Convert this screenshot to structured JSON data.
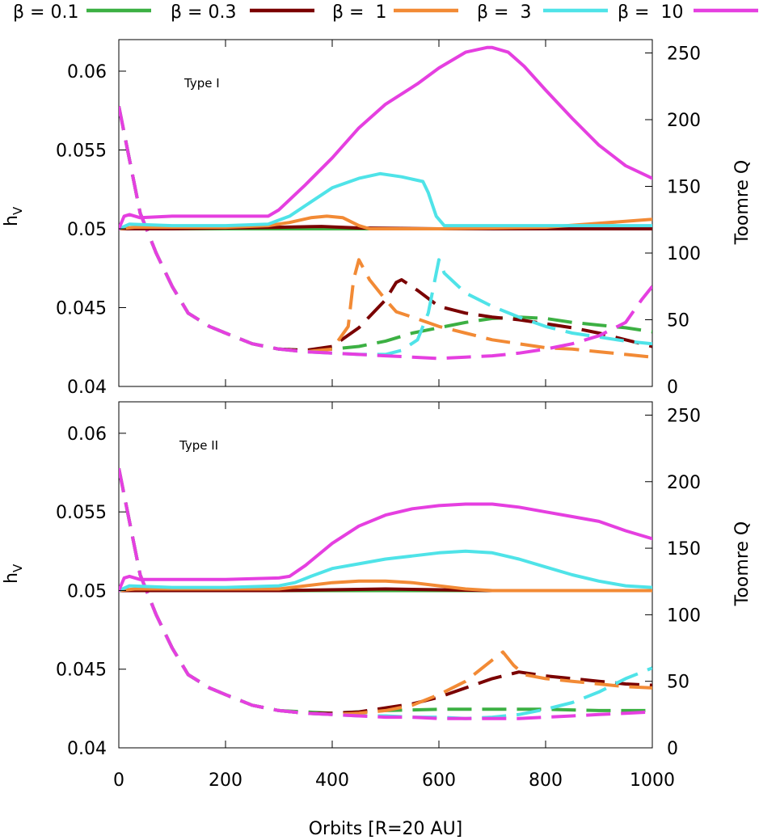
{
  "figure": {
    "xlabel": "Orbits [R=20 AU]",
    "x_ticks": [
      "0",
      "200",
      "400",
      "600",
      "800",
      "1000"
    ],
    "left_ticks": [
      "0.04",
      "0.045",
      "0.05",
      "0.055",
      "0.06"
    ],
    "right_ticks": [
      "0",
      "50",
      "100",
      "150",
      "200",
      "250"
    ]
  },
  "legend": [
    {
      "label": "β = 0.1",
      "color": "#3cb043"
    },
    {
      "label": "β = 0.3",
      "color": "#7a0000"
    },
    {
      "label": "β =  1",
      "color": "#f28a35"
    },
    {
      "label": "β =  3",
      "color": "#4fe3e8"
    },
    {
      "label": "β =  10",
      "color": "#e53fe0"
    }
  ],
  "chart_data": [
    {
      "type": "line",
      "panel_label": "Type I",
      "xlabel": "Orbits [R=20 AU]",
      "ylabel": "h",
      "ylabel_sub": "V",
      "y2label": "Toomre Q",
      "xlim": [
        0,
        1000
      ],
      "ylim": [
        0.04,
        0.062
      ],
      "y2lim": [
        0,
        260
      ],
      "hv_series": [
        {
          "name": "β = 0.1",
          "color": "#3cb043",
          "x": [
            0,
            1000
          ],
          "y": [
            0.05,
            0.05
          ]
        },
        {
          "name": "β = 0.3",
          "color": "#7a0000",
          "x": [
            0,
            100,
            300,
            380,
            450,
            600,
            1000
          ],
          "y": [
            0.05,
            0.05,
            0.0501,
            0.05015,
            0.05005,
            0.05,
            0.05
          ]
        },
        {
          "name": "β =  1",
          "color": "#f28a35",
          "x": [
            0,
            30,
            100,
            200,
            280,
            320,
            360,
            390,
            420,
            450,
            470,
            500,
            600,
            800,
            1000
          ],
          "y": [
            0.05,
            0.0501,
            0.0501,
            0.0501,
            0.0502,
            0.0504,
            0.0507,
            0.0508,
            0.0507,
            0.0502,
            0.05,
            0.05,
            0.05,
            0.0501,
            0.0506
          ]
        },
        {
          "name": "β =  3",
          "color": "#4fe3e8",
          "x": [
            0,
            20,
            100,
            200,
            280,
            320,
            360,
            400,
            450,
            490,
            530,
            570,
            580,
            595,
            610,
            650,
            800,
            1000
          ],
          "y": [
            0.05,
            0.0503,
            0.0502,
            0.0502,
            0.0503,
            0.0508,
            0.0517,
            0.0526,
            0.0532,
            0.0535,
            0.0533,
            0.053,
            0.0523,
            0.0508,
            0.0502,
            0.0502,
            0.0502,
            0.0502
          ]
        },
        {
          "name": "β =  10",
          "color": "#e53fe0",
          "x": [
            0,
            10,
            20,
            40,
            100,
            200,
            280,
            300,
            350,
            400,
            450,
            500,
            560,
            600,
            650,
            690,
            700,
            730,
            760,
            800,
            850,
            900,
            950,
            1000
          ],
          "y": [
            0.05,
            0.0508,
            0.0509,
            0.0507,
            0.0508,
            0.0508,
            0.0508,
            0.0512,
            0.0528,
            0.0545,
            0.0564,
            0.0579,
            0.0592,
            0.0602,
            0.0612,
            0.0615,
            0.0615,
            0.0612,
            0.0603,
            0.0588,
            0.057,
            0.0553,
            0.054,
            0.0532
          ]
        }
      ],
      "toomre_series": [
        {
          "name": "β = 0.1",
          "color": "#3cb043",
          "x": [
            0,
            20,
            40,
            70,
            100,
            130,
            170,
            200,
            250,
            300,
            350,
            400,
            450,
            500,
            550,
            600,
            650,
            700,
            750,
            800,
            850,
            900,
            950,
            1000
          ],
          "y": [
            210,
            170,
            130,
            100,
            75,
            55,
            45,
            40,
            32,
            28,
            27,
            28,
            30,
            34,
            40,
            44,
            48,
            51,
            52,
            51,
            48,
            46,
            44,
            41
          ]
        },
        {
          "name": "β = 0.3",
          "color": "#7a0000",
          "x": [
            0,
            20,
            40,
            70,
            100,
            130,
            170,
            200,
            250,
            300,
            350,
            400,
            450,
            500,
            520,
            530,
            560,
            600,
            650,
            700,
            750,
            800,
            850,
            900,
            950,
            1000
          ],
          "y": [
            210,
            170,
            130,
            100,
            75,
            55,
            45,
            40,
            32,
            28,
            27,
            30,
            44,
            65,
            78,
            80,
            72,
            60,
            55,
            52,
            50,
            47,
            44,
            40,
            35,
            30
          ]
        },
        {
          "name": "β =  1",
          "color": "#f28a35",
          "x": [
            0,
            20,
            40,
            70,
            100,
            130,
            170,
            200,
            250,
            300,
            350,
            400,
            430,
            440,
            450,
            470,
            500,
            520,
            550,
            600,
            650,
            700,
            750,
            800,
            850,
            900,
            950,
            1000
          ],
          "y": [
            210,
            170,
            130,
            100,
            75,
            55,
            45,
            40,
            32,
            28,
            26,
            28,
            45,
            80,
            95,
            80,
            65,
            56,
            52,
            45,
            40,
            35,
            32,
            29,
            28,
            26,
            24,
            22
          ]
        },
        {
          "name": "β =  3",
          "color": "#4fe3e8",
          "x": [
            0,
            20,
            40,
            70,
            100,
            130,
            170,
            200,
            250,
            300,
            350,
            400,
            450,
            500,
            530,
            560,
            580,
            595,
            600,
            610,
            650,
            700,
            750,
            800,
            850,
            900,
            950,
            1000
          ],
          "y": [
            210,
            170,
            130,
            100,
            75,
            55,
            45,
            40,
            32,
            28,
            26,
            25,
            24,
            24,
            27,
            35,
            55,
            85,
            95,
            85,
            70,
            60,
            52,
            45,
            40,
            37,
            34,
            32
          ]
        },
        {
          "name": "β =  10",
          "color": "#e53fe0",
          "x": [
            0,
            20,
            40,
            70,
            100,
            130,
            170,
            200,
            250,
            300,
            350,
            400,
            450,
            500,
            550,
            600,
            650,
            700,
            750,
            800,
            850,
            900,
            950,
            980,
            1000
          ],
          "y": [
            210,
            170,
            130,
            100,
            75,
            55,
            45,
            40,
            32,
            28,
            26,
            25,
            24,
            23,
            22,
            21,
            22,
            23,
            25,
            28,
            32,
            38,
            48,
            65,
            75
          ]
        }
      ]
    },
    {
      "type": "line",
      "panel_label": "Type II",
      "xlabel": "Orbits [R=20 AU]",
      "ylabel": "h",
      "ylabel_sub": "V",
      "y2label": "Toomre Q",
      "xlim": [
        0,
        1000
      ],
      "ylim": [
        0.04,
        0.062
      ],
      "y2lim": [
        0,
        260
      ],
      "hv_series": [
        {
          "name": "β = 0.1",
          "color": "#3cb043",
          "x": [
            0,
            1000
          ],
          "y": [
            0.05,
            0.05
          ]
        },
        {
          "name": "β = 0.3",
          "color": "#7a0000",
          "x": [
            0,
            300,
            400,
            500,
            600,
            700,
            1000
          ],
          "y": [
            0.05,
            0.05,
            0.05005,
            0.0501,
            0.05005,
            0.05,
            0.05
          ]
        },
        {
          "name": "β =  1",
          "color": "#f28a35",
          "x": [
            0,
            30,
            100,
            200,
            300,
            350,
            400,
            450,
            500,
            550,
            600,
            650,
            700,
            800,
            1000
          ],
          "y": [
            0.05,
            0.0501,
            0.0501,
            0.0501,
            0.0501,
            0.0503,
            0.0505,
            0.0506,
            0.0506,
            0.0505,
            0.0503,
            0.0501,
            0.05,
            0.05,
            0.05
          ]
        },
        {
          "name": "β =  3",
          "color": "#4fe3e8",
          "x": [
            0,
            20,
            100,
            200,
            300,
            330,
            360,
            400,
            450,
            500,
            550,
            600,
            650,
            700,
            750,
            800,
            850,
            900,
            950,
            1000
          ],
          "y": [
            0.05,
            0.0503,
            0.0502,
            0.0502,
            0.0503,
            0.0505,
            0.0509,
            0.0514,
            0.0517,
            0.052,
            0.0522,
            0.0524,
            0.0525,
            0.0524,
            0.052,
            0.0515,
            0.051,
            0.0506,
            0.0503,
            0.0502
          ]
        },
        {
          "name": "β =  10",
          "color": "#e53fe0",
          "x": [
            0,
            10,
            20,
            40,
            100,
            200,
            300,
            320,
            350,
            400,
            450,
            500,
            550,
            600,
            650,
            700,
            750,
            800,
            850,
            900,
            950,
            1000
          ],
          "y": [
            0.05,
            0.0508,
            0.0509,
            0.0507,
            0.0507,
            0.0507,
            0.0508,
            0.0509,
            0.0516,
            0.053,
            0.0541,
            0.0548,
            0.0552,
            0.0554,
            0.0555,
            0.0555,
            0.0553,
            0.055,
            0.0547,
            0.0544,
            0.0538,
            0.0533
          ]
        }
      ],
      "toomre_series": [
        {
          "name": "β = 0.1",
          "color": "#3cb043",
          "x": [
            0,
            20,
            40,
            70,
            100,
            130,
            170,
            200,
            250,
            300,
            350,
            400,
            500,
            600,
            700,
            800,
            900,
            1000
          ],
          "y": [
            210,
            170,
            130,
            100,
            75,
            55,
            45,
            40,
            32,
            28,
            27,
            26,
            28,
            29,
            29,
            29,
            28,
            28
          ]
        },
        {
          "name": "β = 0.3",
          "color": "#7a0000",
          "x": [
            0,
            20,
            40,
            70,
            100,
            130,
            170,
            200,
            250,
            300,
            350,
            400,
            450,
            500,
            550,
            600,
            650,
            700,
            750,
            800,
            850,
            900,
            950,
            1000
          ],
          "y": [
            210,
            170,
            130,
            100,
            75,
            55,
            45,
            40,
            32,
            28,
            26,
            26,
            27,
            30,
            33,
            38,
            45,
            52,
            57,
            54,
            52,
            50,
            48,
            47
          ]
        },
        {
          "name": "β =  1",
          "color": "#f28a35",
          "x": [
            0,
            20,
            40,
            70,
            100,
            130,
            170,
            200,
            250,
            300,
            350,
            400,
            450,
            500,
            550,
            600,
            650,
            700,
            720,
            740,
            760,
            800,
            850,
            900,
            950,
            1000
          ],
          "y": [
            210,
            170,
            130,
            100,
            75,
            55,
            45,
            40,
            32,
            28,
            26,
            25,
            26,
            28,
            32,
            40,
            50,
            66,
            72,
            62,
            55,
            52,
            50,
            48,
            46,
            45
          ]
        },
        {
          "name": "β =  3",
          "color": "#4fe3e8",
          "x": [
            0,
            20,
            40,
            70,
            100,
            130,
            170,
            200,
            250,
            300,
            350,
            400,
            450,
            500,
            550,
            600,
            650,
            700,
            750,
            800,
            850,
            900,
            950,
            1000
          ],
          "y": [
            210,
            170,
            130,
            100,
            75,
            55,
            45,
            40,
            32,
            28,
            26,
            25,
            24,
            24,
            23,
            23,
            22,
            23,
            25,
            29,
            34,
            42,
            52,
            60
          ]
        },
        {
          "name": "β =  10",
          "color": "#e53fe0",
          "x": [
            0,
            20,
            40,
            70,
            100,
            130,
            170,
            200,
            250,
            300,
            350,
            400,
            450,
            500,
            550,
            600,
            650,
            700,
            750,
            800,
            850,
            900,
            950,
            1000
          ],
          "y": [
            210,
            170,
            130,
            100,
            75,
            55,
            45,
            40,
            32,
            28,
            26,
            25,
            24,
            23,
            23,
            22,
            22,
            22,
            22,
            23,
            24,
            25,
            26,
            27
          ]
        }
      ]
    }
  ]
}
